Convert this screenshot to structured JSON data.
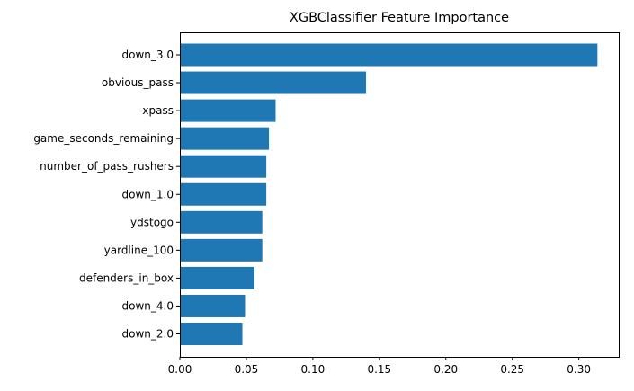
{
  "chart_data": {
    "type": "bar",
    "orientation": "horizontal",
    "title": "XGBClassifier Feature Importance",
    "xlabel": "",
    "ylabel": "",
    "xlim": [
      0,
      0.33
    ],
    "xticks": [
      "0.00",
      "0.05",
      "0.10",
      "0.15",
      "0.20",
      "0.25",
      "0.30"
    ],
    "bar_color": "#1f77b4",
    "grid": false,
    "categories": [
      "down_3.0",
      "obvious_pass",
      "xpass",
      "game_seconds_remaining",
      "number_of_pass_rushers",
      "down_1.0",
      "ydstogo",
      "yardline_100",
      "defenders_in_box",
      "down_4.0",
      "down_2.0"
    ],
    "values": [
      0.314,
      0.14,
      0.072,
      0.067,
      0.065,
      0.065,
      0.062,
      0.062,
      0.056,
      0.049,
      0.047
    ]
  }
}
